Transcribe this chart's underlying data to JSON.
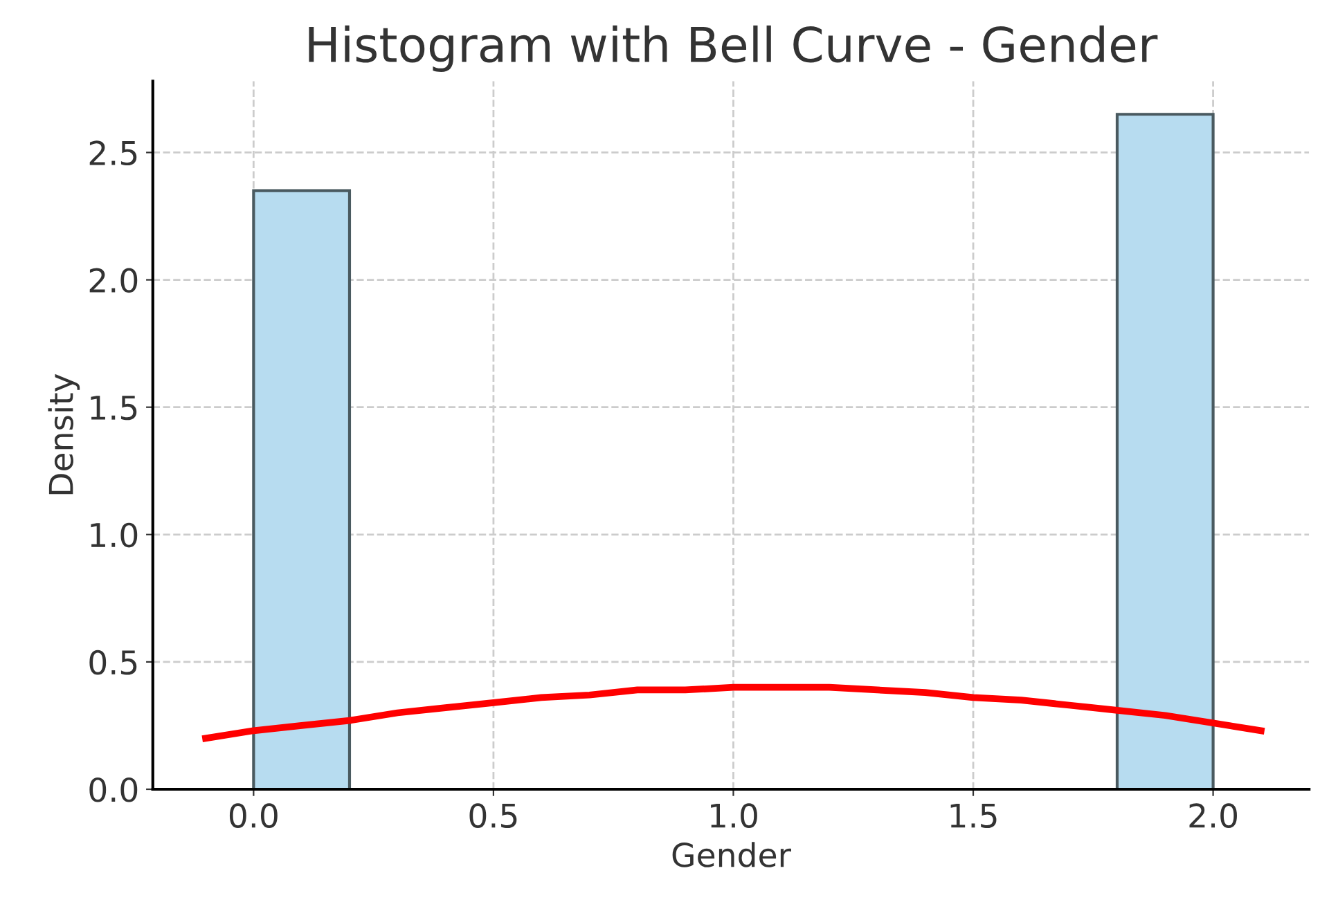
{
  "chart_data": {
    "type": "histogram",
    "title": "Histogram with Bell Curve - Gender",
    "xlabel": "Gender",
    "ylabel": "Density",
    "series": [
      {
        "type": "histogram",
        "bins": [
          0.0,
          0.2,
          0.4,
          0.6,
          0.8,
          1.0,
          1.2,
          1.4,
          1.6,
          1.8,
          2.0
        ],
        "values": [
          2.35,
          0,
          0,
          0,
          0,
          0,
          0,
          0,
          0,
          2.65
        ],
        "color": "#b7dcf0"
      },
      {
        "type": "line",
        "color": "#ff0000",
        "x": [
          -0.1,
          0.0,
          0.1,
          0.2,
          0.3,
          0.4,
          0.5,
          0.6,
          0.7,
          0.8,
          0.9,
          1.0,
          1.1,
          1.2,
          1.3,
          1.4,
          1.5,
          1.6,
          1.7,
          1.8,
          1.9,
          2.0,
          2.1
        ],
        "values": [
          0.2,
          0.23,
          0.25,
          0.27,
          0.3,
          0.32,
          0.34,
          0.36,
          0.37,
          0.39,
          0.39,
          0.4,
          0.4,
          0.4,
          0.39,
          0.38,
          0.36,
          0.35,
          0.33,
          0.31,
          0.29,
          0.26,
          0.23
        ]
      }
    ],
    "xlim": [
      -0.21,
      2.2
    ],
    "ylim": [
      0,
      2.78
    ],
    "xticks": [
      {
        "value": 0,
        "label": "0.0"
      },
      0.5,
      {
        "value": 1,
        "label": "1.0"
      },
      1.5,
      {
        "value": 2,
        "label": "2.0"
      }
    ],
    "yticks": [
      {
        "value": 0,
        "label": "0.0"
      },
      0.5,
      {
        "value": 1,
        "label": "1.0"
      },
      1.5,
      {
        "value": 2,
        "label": "2.0"
      },
      2.5
    ],
    "grid": true,
    "line_style": "solid",
    "marker": "none"
  }
}
